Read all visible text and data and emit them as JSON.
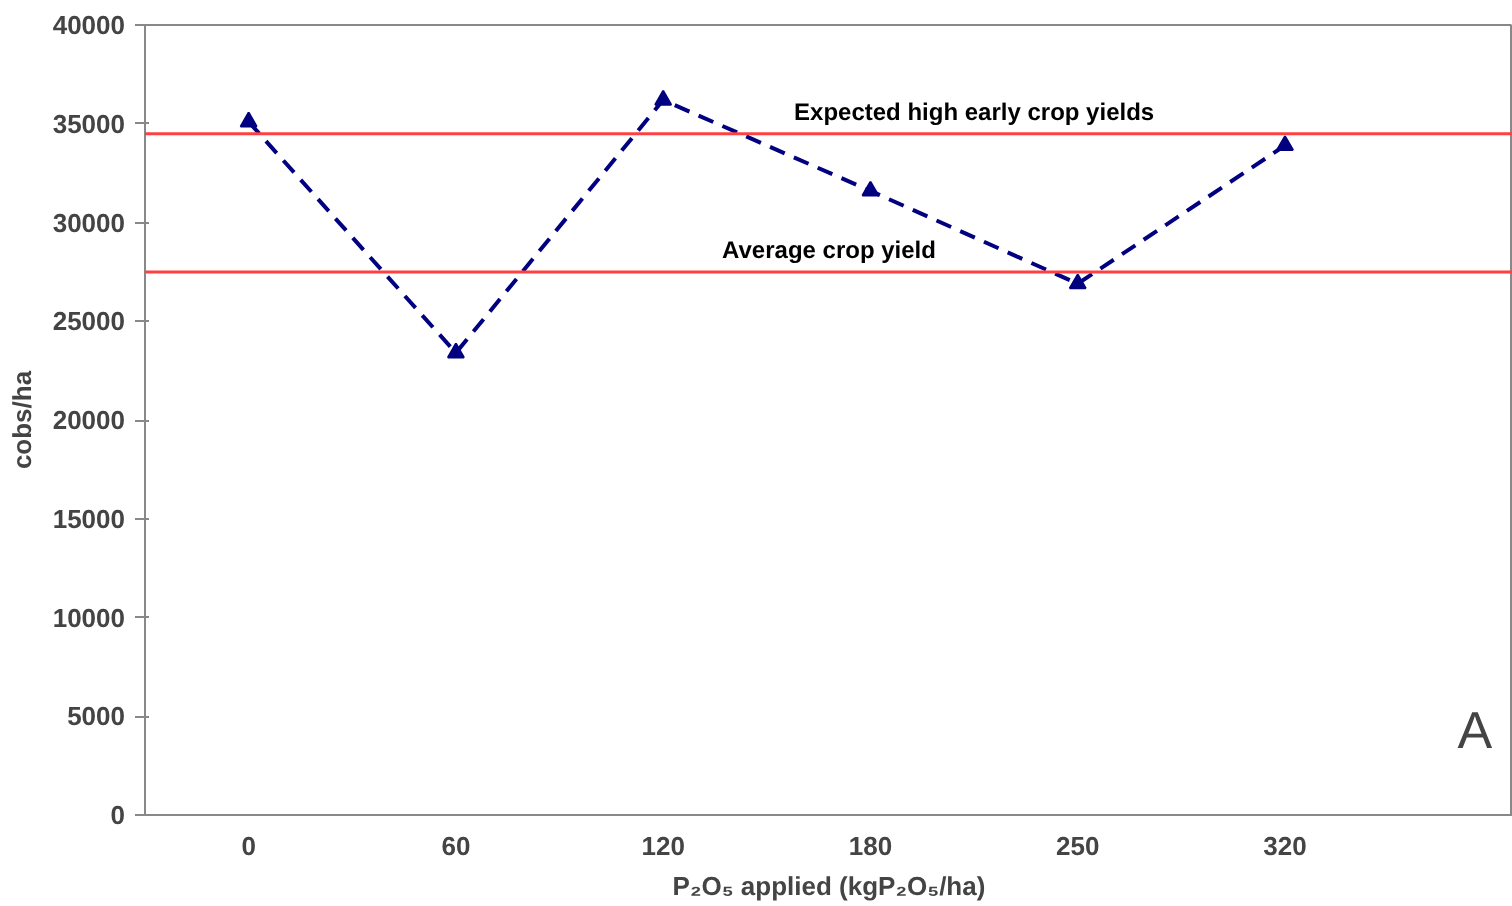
{
  "chart_data": {
    "type": "line",
    "categories": [
      "0",
      "60",
      "120",
      "180",
      "250",
      "320"
    ],
    "series": [
      {
        "color": "#000080",
        "values": [
          35100,
          23400,
          36200,
          31600,
          26900,
          33900
        ]
      }
    ],
    "xlabel": "P₂O₅ applied (kgP₂O₅/ha)",
    "ylabel": "cobs/ha",
    "ylim": [
      0,
      40000
    ],
    "yticks": [
      0,
      5000,
      10000,
      15000,
      20000,
      25000,
      30000,
      35000,
      40000
    ],
    "ref_lines": [
      {
        "axis": "y",
        "value": 34500,
        "label": "Expected high early crop yields",
        "color": "#ff4040"
      },
      {
        "axis": "y",
        "value": 27500,
        "label": "Average crop yield",
        "color": "#ff4040"
      }
    ],
    "annotations": [
      "A"
    ],
    "marker": "triangle",
    "line_style": "dashed",
    "grid": false
  }
}
